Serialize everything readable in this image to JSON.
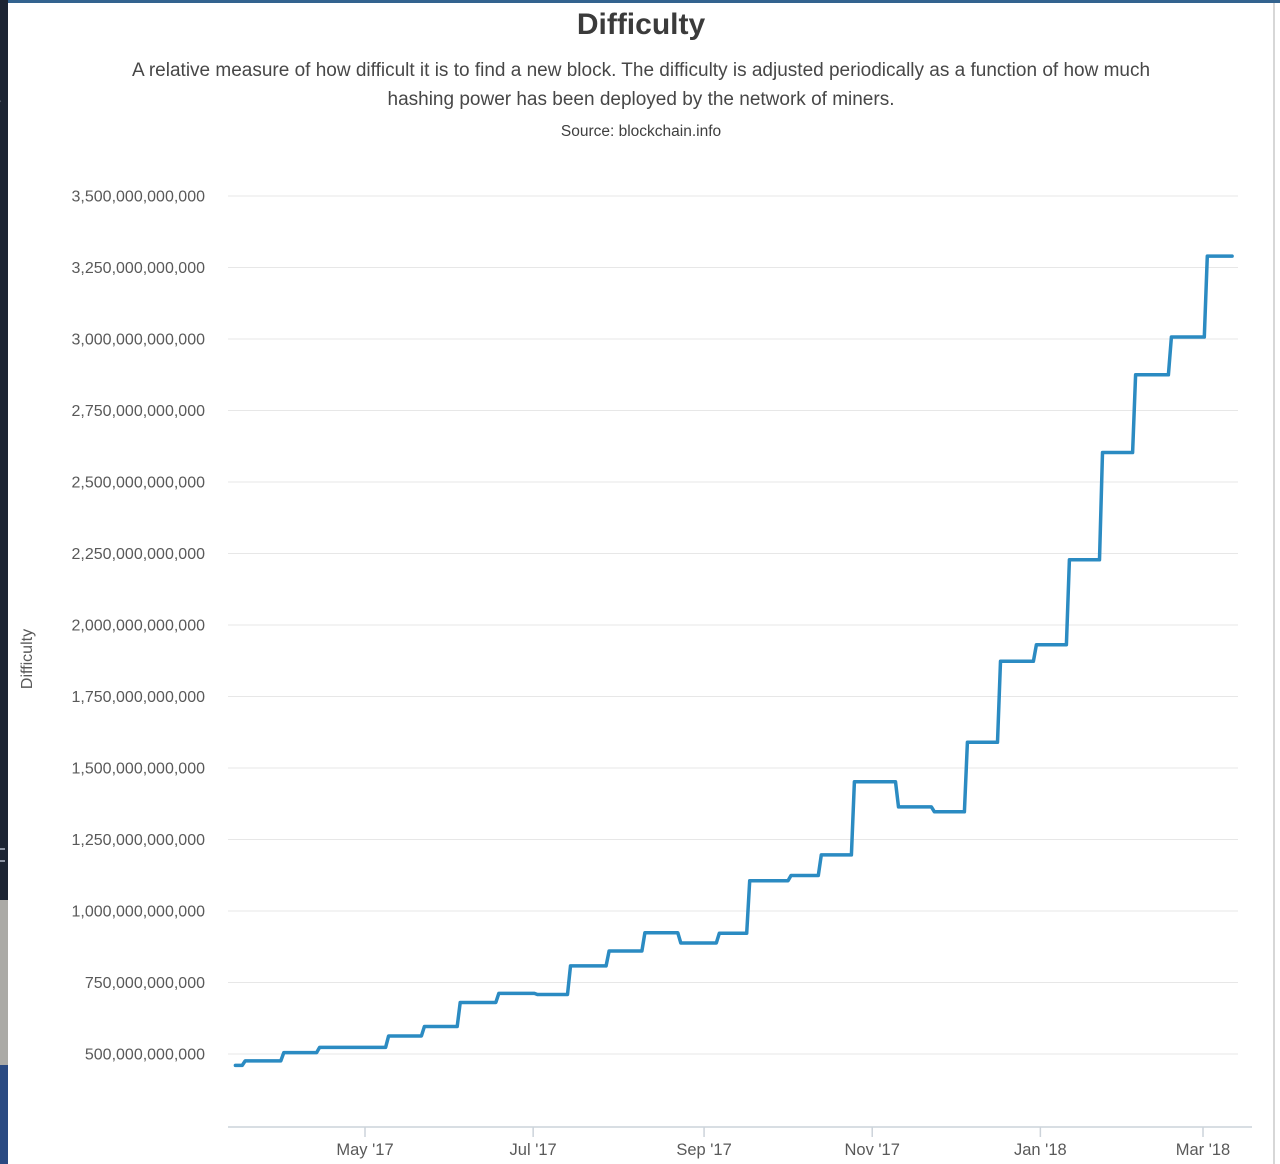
{
  "window": {
    "top_bar_color": "#33638f",
    "left_strip": {
      "top_color": "#1d2533",
      "mid_color": "#abaaa6",
      "bottom_color": "#2a4a82",
      "chevron_icon": "›"
    },
    "right_border_color": "#d7d7d7"
  },
  "header": {
    "title": "Difficulty",
    "subtitle": "A relative measure of how difficult it is to find a new block. The difficulty is adjusted periodically as a function of how much hashing power has been deployed by the network of miners.",
    "source": "Source: blockchain.info"
  },
  "chart_data": {
    "type": "line",
    "line_style": "step-after",
    "title": "Difficulty",
    "xlabel": "",
    "ylabel": "Difficulty",
    "legend": "none",
    "grid": "horizontal",
    "line_color": "#2b8bc2",
    "grid_color": "#e7e7e7",
    "axis_line_color": "#ccd3da",
    "axis_text_color": "#595959",
    "ylim": [
      250000000000,
      3500000000000
    ],
    "y_ticks": [
      500000000000,
      750000000000,
      1000000000000,
      1250000000000,
      1500000000000,
      1750000000000,
      2000000000000,
      2250000000000,
      2500000000000,
      2750000000000,
      3000000000000,
      3250000000000,
      3500000000000
    ],
    "x_ticks": [
      {
        "date": "2017-05-01",
        "label": "May '17"
      },
      {
        "date": "2017-07-01",
        "label": "Jul '17"
      },
      {
        "date": "2017-09-01",
        "label": "Sep '17"
      },
      {
        "date": "2017-11-01",
        "label": "Nov '17"
      },
      {
        "date": "2018-01-01",
        "label": "Jan '18"
      },
      {
        "date": "2018-03-01",
        "label": "Mar '18"
      }
    ],
    "series": [
      {
        "name": "Difficulty",
        "points": [
          {
            "date": "2017-03-15",
            "value": 460000000000
          },
          {
            "date": "2017-03-18",
            "value": 476000000000
          },
          {
            "date": "2017-04-01",
            "value": 505000000000
          },
          {
            "date": "2017-04-14",
            "value": 523000000000
          },
          {
            "date": "2017-05-09",
            "value": 563000000000
          },
          {
            "date": "2017-05-22",
            "value": 596000000000
          },
          {
            "date": "2017-06-04",
            "value": 680000000000
          },
          {
            "date": "2017-06-18",
            "value": 712000000000
          },
          {
            "date": "2017-07-02",
            "value": 708000000000
          },
          {
            "date": "2017-07-14",
            "value": 808000000000
          },
          {
            "date": "2017-07-28",
            "value": 860000000000
          },
          {
            "date": "2017-08-10",
            "value": 924000000000
          },
          {
            "date": "2017-08-23",
            "value": 888000000000
          },
          {
            "date": "2017-09-06",
            "value": 922000000000
          },
          {
            "date": "2017-09-17",
            "value": 1106000000000
          },
          {
            "date": "2017-10-02",
            "value": 1124000000000
          },
          {
            "date": "2017-10-13",
            "value": 1196000000000
          },
          {
            "date": "2017-10-25",
            "value": 1452000000000
          },
          {
            "date": "2017-11-10",
            "value": 1364000000000
          },
          {
            "date": "2017-11-23",
            "value": 1347000000000
          },
          {
            "date": "2017-12-05",
            "value": 1590000000000
          },
          {
            "date": "2017-12-17",
            "value": 1873000000000
          },
          {
            "date": "2017-12-30",
            "value": 1931000000000
          },
          {
            "date": "2018-01-11",
            "value": 2228000000000
          },
          {
            "date": "2018-01-23",
            "value": 2603000000000
          },
          {
            "date": "2018-02-04",
            "value": 2875000000000
          },
          {
            "date": "2018-02-17",
            "value": 3007000000000
          },
          {
            "date": "2018-03-02",
            "value": 3290000000000
          },
          {
            "date": "2018-03-11",
            "value": 3290000000000
          }
        ]
      }
    ]
  }
}
